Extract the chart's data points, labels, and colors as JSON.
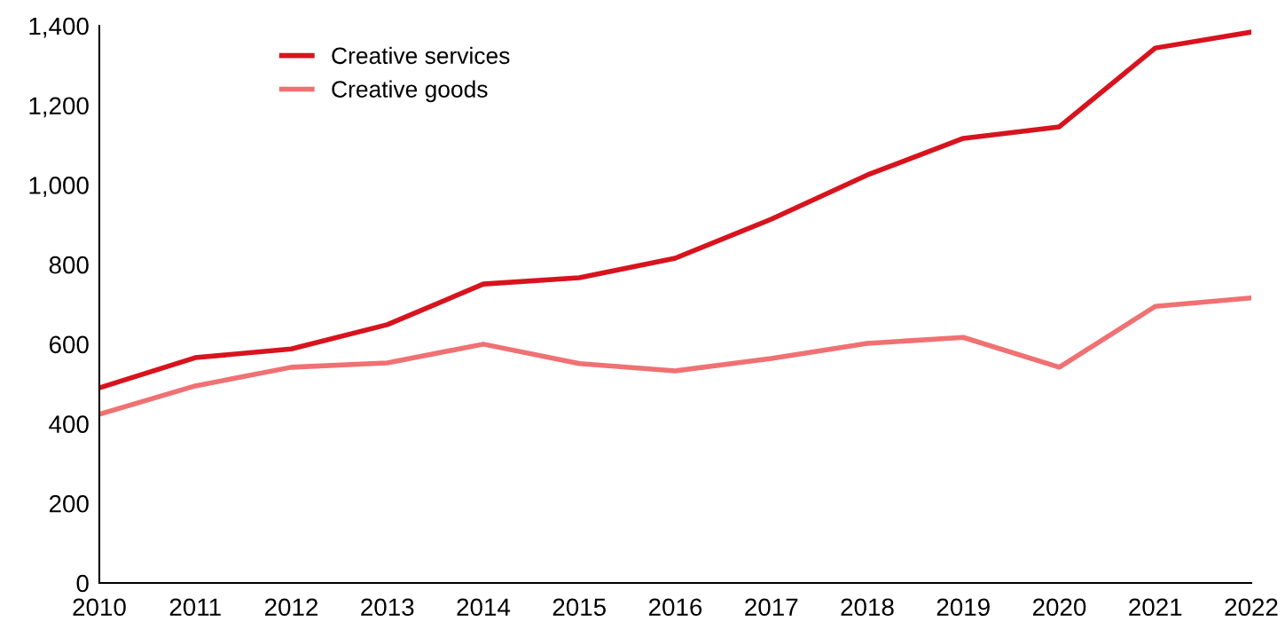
{
  "chart_data": {
    "type": "line",
    "x": [
      2010,
      2011,
      2012,
      2013,
      2014,
      2015,
      2016,
      2017,
      2018,
      2019,
      2020,
      2021,
      2022
    ],
    "series": [
      {
        "name": "Creative services",
        "color": "#d7141e",
        "values": [
          490,
          566,
          588,
          649,
          751,
          767,
          816,
          914,
          1025,
          1117,
          1146,
          1344,
          1384
        ]
      },
      {
        "name": "Creative goods",
        "color": "#f07173",
        "values": [
          424,
          495,
          542,
          553,
          600,
          551,
          533,
          564,
          602,
          617,
          542,
          695,
          716
        ]
      }
    ],
    "xlim": [
      2010,
      2022
    ],
    "xticks": [
      2010,
      2011,
      2012,
      2013,
      2014,
      2015,
      2016,
      2017,
      2018,
      2019,
      2020,
      2021,
      2022
    ],
    "ylim": [
      0,
      1400
    ],
    "yticks": [
      {
        "value": 0,
        "label": "0"
      },
      {
        "value": 200,
        "label": "200"
      },
      {
        "value": 400,
        "label": "400"
      },
      {
        "value": 600,
        "label": "600"
      },
      {
        "value": 800,
        "label": "800"
      },
      {
        "value": 1000,
        "label": "1,000"
      },
      {
        "value": 1200,
        "label": "1,200"
      },
      {
        "value": 1400,
        "label": "1,400"
      }
    ],
    "grid": false,
    "legend": "top left",
    "marker": "none",
    "line_style": "solid"
  }
}
